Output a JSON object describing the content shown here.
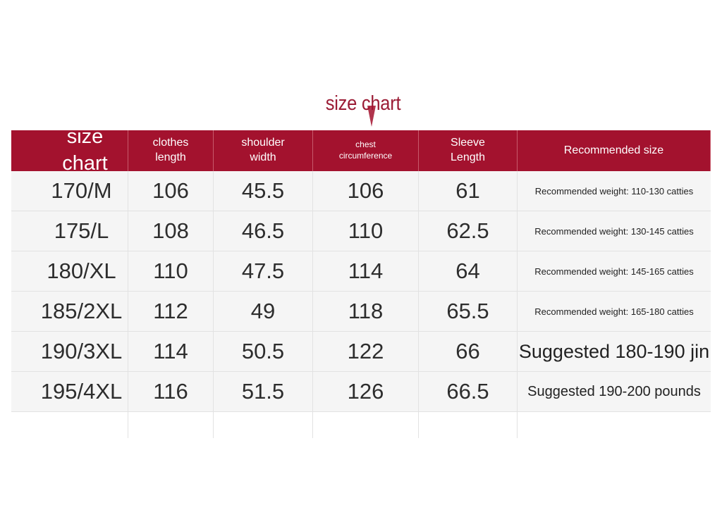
{
  "title": "size chart",
  "colors": {
    "accent": "#a3122e",
    "row_bg": "#f5f5f5"
  },
  "headers": [
    "size chart",
    "clothes\nlength",
    "shoulder\nwidth",
    "chest\ncircumference",
    "Sleeve\nLength",
    "Recommended size"
  ],
  "rows": [
    {
      "size": "170/M",
      "length": "106",
      "shoulder": "45.5",
      "chest": "106",
      "sleeve": "61",
      "rec": "Recommended weight: 110-130 catties"
    },
    {
      "size": "175/L",
      "length": "108",
      "shoulder": "46.5",
      "chest": "110",
      "sleeve": "62.5",
      "rec": "Recommended weight: 130-145 catties"
    },
    {
      "size": "180/XL",
      "length": "110",
      "shoulder": "47.5",
      "chest": "114",
      "sleeve": "64",
      "rec": "Recommended weight: 145-165 catties"
    },
    {
      "size": "185/2XL",
      "length": "112",
      "shoulder": "49",
      "chest": "118",
      "sleeve": "65.5",
      "rec": "Recommended weight: 165-180 catties"
    },
    {
      "size": "190/3XL",
      "length": "114",
      "shoulder": "50.5",
      "chest": "122",
      "sleeve": "66",
      "rec": "Suggested 180-190 jin"
    },
    {
      "size": "195/4XL",
      "length": "116",
      "shoulder": "51.5",
      "chest": "126",
      "sleeve": "66.5",
      "rec": "Suggested 190-200 pounds"
    }
  ]
}
